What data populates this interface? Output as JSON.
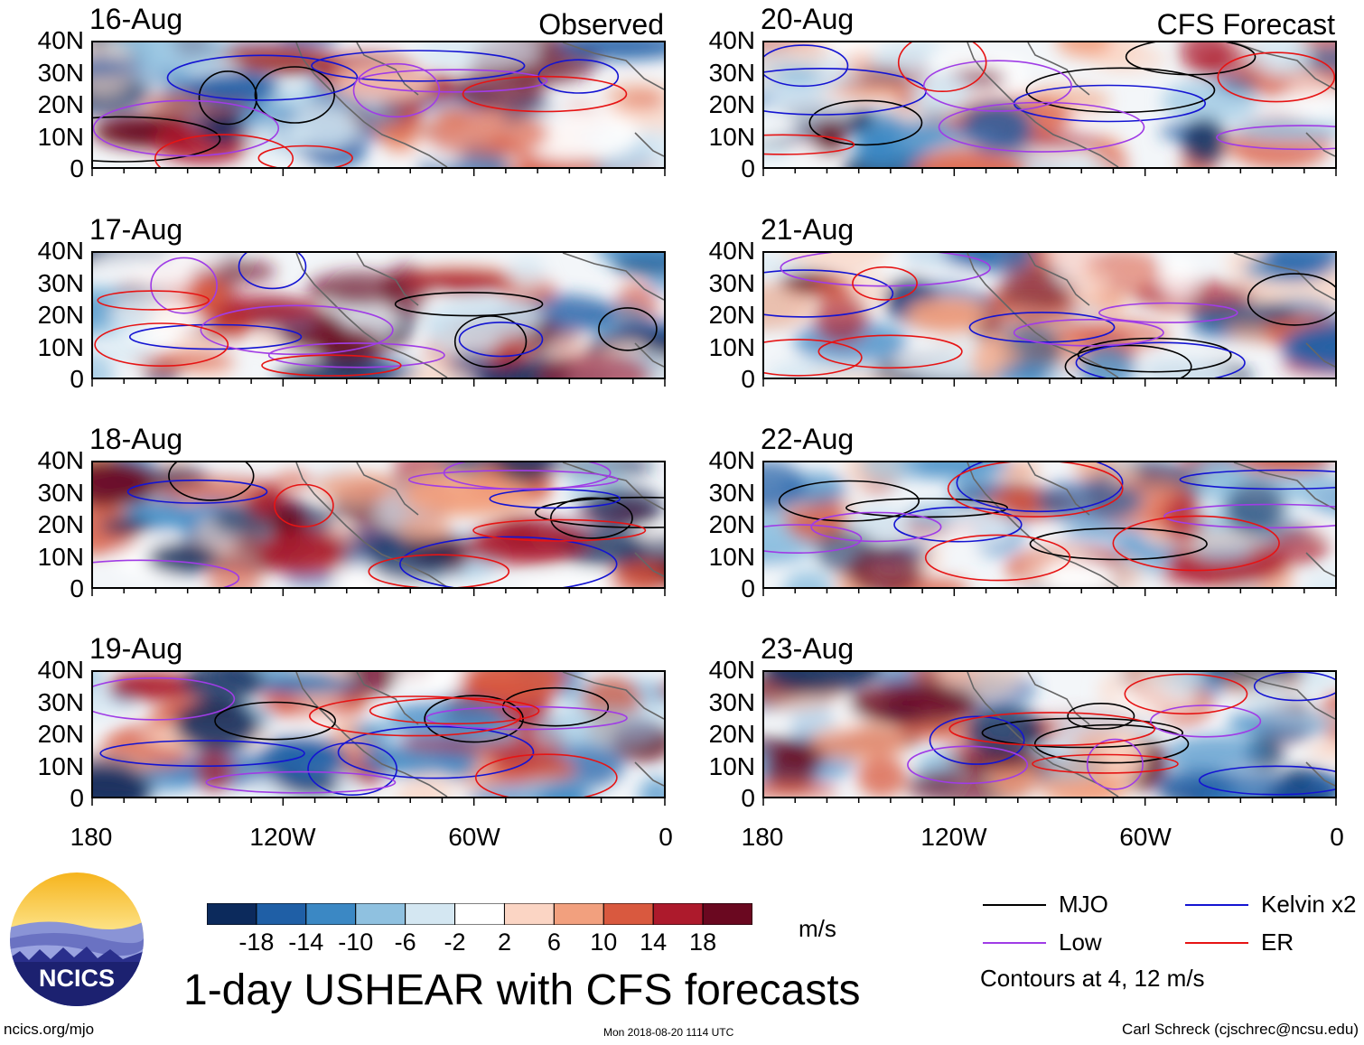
{
  "chart_data": {
    "type": "heatmap",
    "title": "1-day USHEAR with CFS forecasts",
    "units": "m/s",
    "column_labels": [
      "Observed",
      "CFS Forecast"
    ],
    "panels": [
      {
        "date": "16-Aug",
        "kind": "Observed",
        "tag": "Observed"
      },
      {
        "date": "17-Aug",
        "kind": "Observed",
        "tag": ""
      },
      {
        "date": "18-Aug",
        "kind": "Observed",
        "tag": ""
      },
      {
        "date": "19-Aug",
        "kind": "Observed",
        "tag": ""
      },
      {
        "date": "20-Aug",
        "kind": "Forecast",
        "tag": "CFS Forecast"
      },
      {
        "date": "21-Aug",
        "kind": "Forecast",
        "tag": ""
      },
      {
        "date": "22-Aug",
        "kind": "Forecast",
        "tag": ""
      },
      {
        "date": "23-Aug",
        "kind": "Forecast",
        "tag": ""
      }
    ],
    "y_ticks": [
      "40N",
      "30N",
      "20N",
      "10N",
      "0"
    ],
    "x_ticks": [
      "180",
      "120W",
      "60W",
      "0"
    ],
    "ylim": [
      0,
      40
    ],
    "xlim": [
      -180,
      0
    ],
    "colorbar": {
      "ticks": [
        "-18",
        "-14",
        "-10",
        "-6",
        "-2",
        "2",
        "6",
        "10",
        "14",
        "18"
      ],
      "colors": [
        "#0c2a5c",
        "#1f5fa6",
        "#3b88c4",
        "#8fc1e0",
        "#d4e7f2",
        "#ffffff",
        "#fbd5c4",
        "#f2a07e",
        "#d9593f",
        "#ad1a2c",
        "#6a0820"
      ]
    },
    "legend": [
      {
        "label": "MJO",
        "color": "#000000"
      },
      {
        "label": "Kelvin x2",
        "color": "#1414d2"
      },
      {
        "label": "Low",
        "color": "#a03ce6"
      },
      {
        "label": "ER",
        "color": "#e61414"
      }
    ],
    "contour_note": "Contours at 4, 12 m/s"
  },
  "footer": {
    "logo_text": "NCICS",
    "url": "ncics.org/mjo",
    "timestamp": "Mon 2018-08-20 1114 UTC",
    "credit": "Carl Schreck (cjschrec@ncsu.edu)"
  }
}
